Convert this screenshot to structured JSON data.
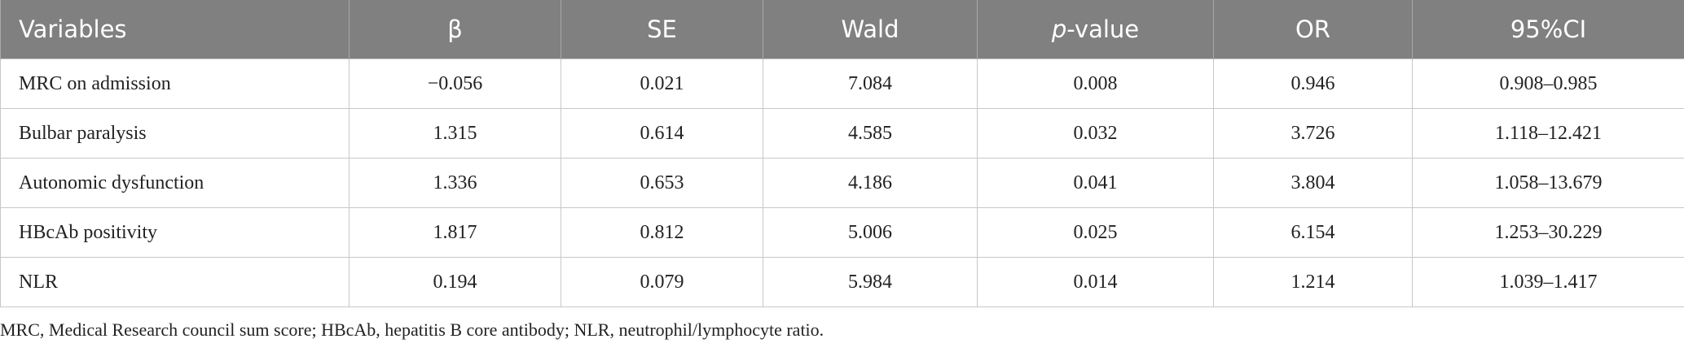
{
  "table": {
    "header": [
      "Variables",
      "β",
      "SE",
      "Wald",
      "p-value",
      "OR",
      "95%CI"
    ],
    "rows": [
      [
        "MRC on admission",
        "−0.056",
        "0.021",
        "7.084",
        "0.008",
        "0.946",
        "0.908–0.985"
      ],
      [
        "Bulbar paralysis",
        "1.315",
        "0.614",
        "4.585",
        "0.032",
        "3.726",
        "1.118–12.421"
      ],
      [
        "Autonomic dysfunction",
        "1.336",
        "0.653",
        "4.186",
        "0.041",
        "3.804",
        "1.058–13.679"
      ],
      [
        "HBcAb positivity",
        "1.817",
        "0.812",
        "5.006",
        "0.025",
        "6.154",
        "1.253–30.229"
      ],
      [
        "NLR",
        "0.194",
        "0.079",
        "5.984",
        "0.014",
        "1.214",
        "1.039–1.417"
      ]
    ],
    "footnote": "MRC, Medical Research council sum score; HBcAb, hepatitis B core antibody; NLR, neutrophil/lymphocyte ratio."
  }
}
